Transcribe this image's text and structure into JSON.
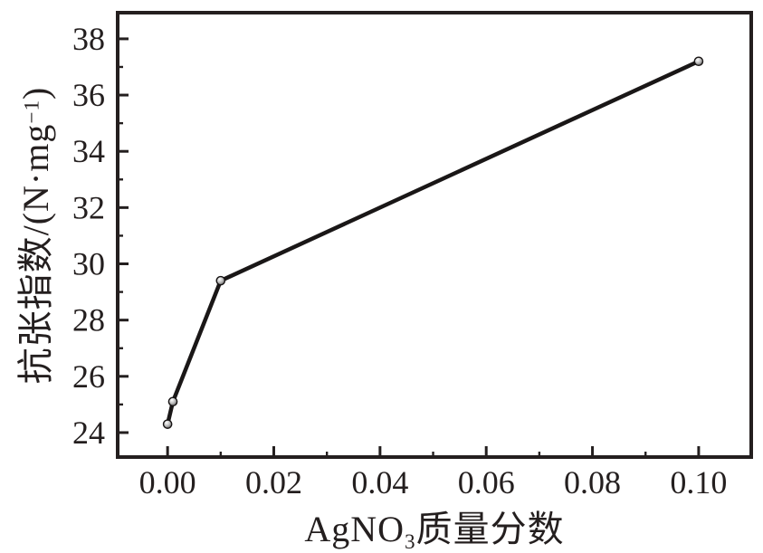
{
  "chart_data": {
    "type": "line",
    "title": "",
    "xlabel": "AgNO3质量分数",
    "ylabel": "抗张指数/(N·mg⁻¹)",
    "series": [
      {
        "name": "抗张指数",
        "x": [
          0.0,
          0.001,
          0.01,
          0.1
        ],
        "y": [
          24.3,
          25.1,
          29.4,
          37.2
        ]
      }
    ],
    "x_ticks": {
      "major": [
        0.0,
        0.02,
        0.04,
        0.06,
        0.08,
        0.1
      ],
      "major_labels": [
        "0.00",
        "0.02",
        "0.04",
        "0.06",
        "0.08",
        "0.10"
      ],
      "minor": [
        0.01,
        0.03,
        0.05,
        0.07,
        0.09
      ]
    },
    "y_ticks": {
      "major": [
        24,
        26,
        28,
        30,
        32,
        34,
        36,
        38
      ],
      "major_labels": [
        "24",
        "26",
        "28",
        "30",
        "32",
        "34",
        "36",
        "38"
      ],
      "minor": [
        25,
        27,
        29,
        31,
        33,
        35,
        37
      ]
    },
    "xlim": [
      -0.0094,
      0.1099
    ],
    "ylim": [
      23.13,
      38.93
    ],
    "grid": false,
    "legend": "none",
    "line_color": "#1a1717",
    "ink_color": "#241f1f",
    "marker": "sphere-circle",
    "background": "#ffffff"
  },
  "labels": {
    "xlabel_main": "AgNO",
    "xlabel_sub": "3",
    "xlabel_rest": "质量分数",
    "ylabel_main": "抗张指数/(N·mg",
    "ylabel_sup": "−1",
    "ylabel_close": ")"
  }
}
